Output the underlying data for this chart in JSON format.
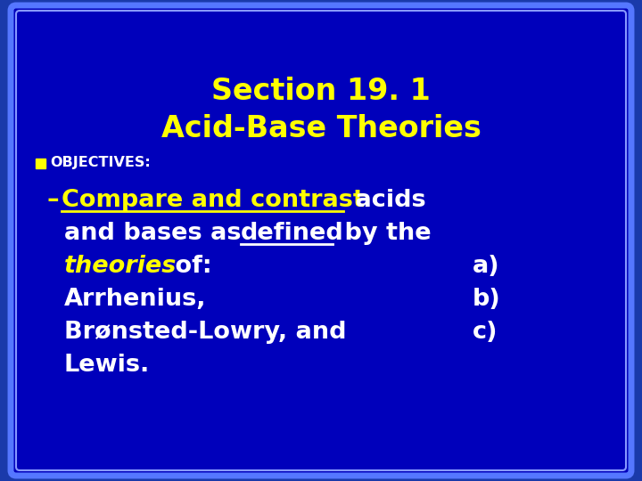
{
  "bg_outer": "#1a3aaa",
  "bg_inner": "#0000bb",
  "border_outer": "#6666ff",
  "border_inner": "#3333cc",
  "title_line1": "Section 19. 1",
  "title_line2": "Acid-Base Theories",
  "title_color": "#ffff00",
  "objectives_label": "OBJECTIVES:",
  "objectives_color": "#ffffff",
  "bullet_color": "#ffff00",
  "white": "#ffffff",
  "yellow": "#ffff00",
  "figsize": [
    7.2,
    5.4
  ],
  "dpi": 100
}
